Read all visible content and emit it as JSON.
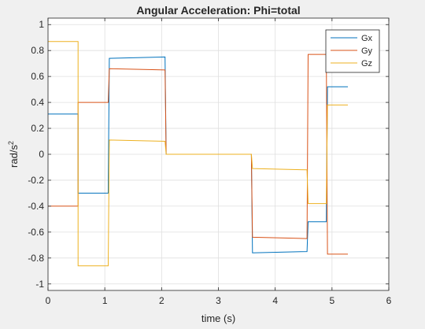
{
  "chart_data": {
    "type": "line",
    "title": "Angular Acceleration: Phi=total",
    "xlabel": "time (s)",
    "ylabel": "rad/s",
    "ylabel_superscript": "2",
    "xlim": [
      0,
      6
    ],
    "ylim": [
      -1.05,
      1.05
    ],
    "xticks": [
      0,
      1,
      2,
      3,
      4,
      5,
      6
    ],
    "yticks": [
      -1,
      -0.8,
      -0.6,
      -0.4,
      -0.2,
      0,
      0.2,
      0.4,
      0.6,
      0.8,
      1
    ],
    "grid": true,
    "legend_position": "top-right",
    "series": [
      {
        "name": "Gx",
        "color": "#0072BD",
        "segments": [
          [
            [
              0,
              0.31
            ],
            [
              0.53,
              0.31
            ]
          ],
          [
            [
              0.53,
              -0.3
            ],
            [
              1.06,
              -0.3
            ]
          ],
          [
            [
              1.08,
              0.74
            ],
            [
              2.06,
              0.75
            ]
          ],
          [
            [
              2.08,
              0.0
            ],
            [
              3.58,
              0.0
            ]
          ],
          [
            [
              3.6,
              -0.76
            ],
            [
              4.56,
              -0.75
            ]
          ],
          [
            [
              4.58,
              -0.52
            ],
            [
              4.9,
              -0.52
            ]
          ],
          [
            [
              4.92,
              0.52
            ],
            [
              5.28,
              0.52
            ]
          ]
        ]
      },
      {
        "name": "Gy",
        "color": "#D95319",
        "segments": [
          [
            [
              0,
              -0.4
            ],
            [
              0.53,
              -0.4
            ]
          ],
          [
            [
              0.53,
              0.4
            ],
            [
              1.06,
              0.4
            ]
          ],
          [
            [
              1.08,
              0.66
            ],
            [
              2.06,
              0.65
            ]
          ],
          [
            [
              2.08,
              0.0
            ],
            [
              3.58,
              0.0
            ]
          ],
          [
            [
              3.6,
              -0.64
            ],
            [
              4.56,
              -0.65
            ]
          ],
          [
            [
              4.58,
              0.77
            ],
            [
              4.9,
              0.77
            ]
          ],
          [
            [
              4.92,
              -0.77
            ],
            [
              5.28,
              -0.77
            ]
          ]
        ]
      },
      {
        "name": "Gz",
        "color": "#EDB120",
        "segments": [
          [
            [
              0,
              0.87
            ],
            [
              0.53,
              0.87
            ]
          ],
          [
            [
              0.53,
              -0.86
            ],
            [
              1.06,
              -0.86
            ]
          ],
          [
            [
              1.08,
              0.11
            ],
            [
              2.06,
              0.1
            ]
          ],
          [
            [
              2.08,
              0.0
            ],
            [
              3.58,
              0.0
            ]
          ],
          [
            [
              3.6,
              -0.11
            ],
            [
              4.56,
              -0.12
            ]
          ],
          [
            [
              4.58,
              -0.38
            ],
            [
              4.9,
              -0.38
            ]
          ],
          [
            [
              4.92,
              0.38
            ],
            [
              5.28,
              0.38
            ]
          ]
        ]
      }
    ]
  }
}
